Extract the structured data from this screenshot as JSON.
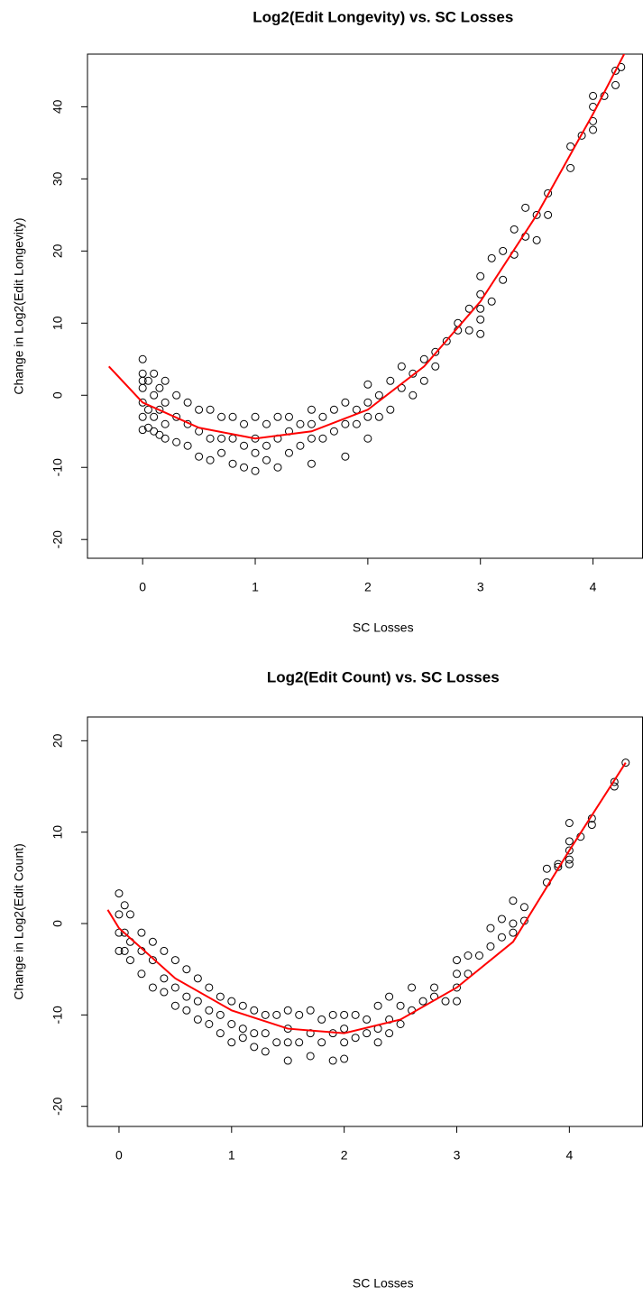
{
  "chart_data": [
    {
      "type": "scatter",
      "title": "Log2(Edit Longevity) vs. SC Losses",
      "x_label": "SC Losses",
      "y_label": "Change in Log2(Edit Longevity)",
      "xlim": [
        -0.49,
        4.44
      ],
      "ylim": [
        -22.6,
        47.3
      ],
      "xticks": [
        0,
        1,
        2,
        3,
        4
      ],
      "yticks": [
        -20,
        -10,
        0,
        10,
        20,
        30,
        40
      ],
      "series": [
        {
          "mode": "points",
          "color": "#000000",
          "x": [
            0,
            0,
            0,
            0,
            0,
            0,
            0,
            0.05,
            0.05,
            0.05,
            0.1,
            0.1,
            0.1,
            0.1,
            0.15,
            0.15,
            0.15,
            0.2,
            0.2,
            0.2,
            0.2,
            0.3,
            0.3,
            0.3,
            0.4,
            0.4,
            0.4,
            0.5,
            0.5,
            0.5,
            0.6,
            0.6,
            0.6,
            0.7,
            0.7,
            0.7,
            0.8,
            0.8,
            0.8,
            0.9,
            0.9,
            0.9,
            1,
            1,
            1,
            1,
            1.1,
            1.1,
            1.1,
            1.2,
            1.2,
            1.2,
            1.3,
            1.3,
            1.3,
            1.4,
            1.4,
            1.5,
            1.5,
            1.5,
            1.5,
            1.6,
            1.6,
            1.7,
            1.7,
            1.8,
            1.8,
            1.8,
            1.9,
            1.9,
            2,
            2,
            2,
            2,
            2.1,
            2.1,
            2.2,
            2.2,
            2.3,
            2.3,
            2.4,
            2.4,
            2.5,
            2.5,
            2.6,
            2.6,
            2.7,
            2.8,
            2.8,
            2.9,
            2.9,
            3,
            3,
            3,
            3,
            3,
            3.1,
            3.1,
            3.2,
            3.2,
            3.3,
            3.3,
            3.4,
            3.4,
            3.5,
            3.5,
            3.6,
            3.6,
            3.8,
            3.8,
            3.9,
            4,
            4,
            4,
            4,
            4.1,
            4.2,
            4.2,
            4.25
          ],
          "values": [
            5,
            3,
            1,
            -1,
            -3,
            -4.8,
            2,
            2,
            -2,
            -4.5,
            3,
            0,
            -3,
            -5,
            1,
            -2,
            -5.5,
            2,
            -1,
            -4,
            -6,
            0,
            -3,
            -6.5,
            -1,
            -4,
            -7,
            -2,
            -5,
            -8.5,
            -2,
            -6,
            -9,
            -3,
            -6,
            -8,
            -3,
            -6,
            -9.5,
            -4,
            -7,
            -10,
            -3,
            -6,
            -8,
            -10.5,
            -4,
            -7,
            -9,
            -3,
            -6,
            -10,
            -3,
            -5,
            -8,
            -4,
            -7,
            -2,
            -4,
            -6,
            -9.5,
            -3,
            -6,
            -2,
            -5,
            -1,
            -4,
            -8.5,
            -2,
            -4,
            1.5,
            -1,
            -3,
            -6,
            0,
            -3,
            2,
            -2,
            4,
            1,
            3,
            0,
            5,
            2,
            6,
            4,
            7.5,
            10,
            9,
            12,
            9,
            16.5,
            14,
            12,
            10.5,
            8.5,
            19,
            13,
            20,
            16,
            23,
            19.5,
            22,
            26,
            25,
            21.5,
            28,
            25,
            31.5,
            34.5,
            36,
            41.5,
            40,
            38,
            36.8,
            41.5,
            45,
            43,
            45.5
          ]
        },
        {
          "mode": "line",
          "color": "#ff0000",
          "x": [
            -0.3,
            0,
            0.5,
            1,
            1.5,
            2,
            2.5,
            3,
            3.5,
            4,
            4.3
          ],
          "values": [
            4,
            -1,
            -4.5,
            -6,
            -5,
            -2,
            4,
            13,
            25,
            39,
            48
          ]
        }
      ]
    },
    {
      "type": "scatter",
      "title": "Log2(Edit Count) vs. SC Losses",
      "x_label": "SC Losses",
      "y_label": "Change in Log2(Edit Count)",
      "xlim": [
        -0.28,
        4.65
      ],
      "ylim": [
        -22.2,
        22.6
      ],
      "xticks": [
        0,
        1,
        2,
        3,
        4
      ],
      "yticks": [
        -20,
        -10,
        0,
        10,
        20
      ],
      "series": [
        {
          "mode": "points",
          "color": "#000000",
          "x": [
            0,
            0,
            0,
            0,
            0.05,
            0.05,
            0.05,
            0.1,
            0.1,
            0.1,
            0.2,
            0.2,
            0.2,
            0.3,
            0.3,
            0.3,
            0.4,
            0.4,
            0.4,
            0.5,
            0.5,
            0.5,
            0.6,
            0.6,
            0.6,
            0.7,
            0.7,
            0.7,
            0.8,
            0.8,
            0.8,
            0.9,
            0.9,
            0.9,
            1,
            1,
            1,
            1.1,
            1.1,
            1.1,
            1.2,
            1.2,
            1.2,
            1.3,
            1.3,
            1.3,
            1.4,
            1.4,
            1.5,
            1.5,
            1.5,
            1.5,
            1.6,
            1.6,
            1.7,
            1.7,
            1.7,
            1.8,
            1.8,
            1.9,
            1.9,
            1.9,
            2,
            2,
            2,
            2,
            2.1,
            2.1,
            2.2,
            2.2,
            2.3,
            2.3,
            2.3,
            2.4,
            2.4,
            2.4,
            2.5,
            2.5,
            2.6,
            2.6,
            2.7,
            2.8,
            2.8,
            2.9,
            3,
            3,
            3,
            3,
            3.1,
            3.1,
            3.2,
            3.3,
            3.3,
            3.4,
            3.4,
            3.5,
            3.5,
            3.5,
            3.6,
            3.6,
            3.8,
            3.8,
            3.9,
            3.9,
            4,
            4,
            4,
            4,
            4,
            4.1,
            4.2,
            4.2,
            4.4,
            4.4,
            4.5
          ],
          "values": [
            3.3,
            1,
            -1,
            -3,
            2,
            -1,
            -3,
            1,
            -2,
            -4,
            -1,
            -3,
            -5.5,
            -2,
            -4,
            -7,
            -3,
            -6,
            -7.5,
            -4,
            -7,
            -9,
            -5,
            -8,
            -9.5,
            -6,
            -8.5,
            -10.5,
            -7,
            -9.5,
            -11,
            -8,
            -10,
            -12,
            -8.5,
            -11,
            -13,
            -9,
            -11.5,
            -12.5,
            -9.5,
            -12,
            -13.5,
            -10,
            -12,
            -14,
            -10,
            -13,
            -9.5,
            -11.5,
            -13,
            -15,
            -10,
            -13,
            -9.5,
            -12,
            -14.5,
            -10.5,
            -13,
            -10,
            -12,
            -15,
            -10,
            -11.5,
            -13,
            -14.8,
            -10,
            -12.5,
            -10.5,
            -12,
            -9,
            -11.5,
            -13,
            -8,
            -10.5,
            -12,
            -9,
            -11,
            -7,
            -9.5,
            -8.5,
            -8,
            -7,
            -8.5,
            -4,
            -5.5,
            -7,
            -8.5,
            -3.5,
            -5.5,
            -3.5,
            -0.5,
            -2.5,
            0.5,
            -1.5,
            2.5,
            0,
            -1,
            1.8,
            0.3,
            4.5,
            6,
            6.2,
            6.5,
            11,
            9,
            8,
            7,
            6.5,
            9.5,
            11.5,
            10.8,
            15.5,
            15,
            17.6
          ]
        },
        {
          "mode": "line",
          "color": "#ff0000",
          "x": [
            -0.1,
            0,
            0.5,
            1,
            1.5,
            2,
            2.5,
            3,
            3.5,
            4,
            4.5
          ],
          "values": [
            1.5,
            -0.5,
            -6,
            -9.5,
            -11.5,
            -12,
            -10.5,
            -7,
            -2,
            8,
            17.6
          ]
        }
      ]
    }
  ]
}
